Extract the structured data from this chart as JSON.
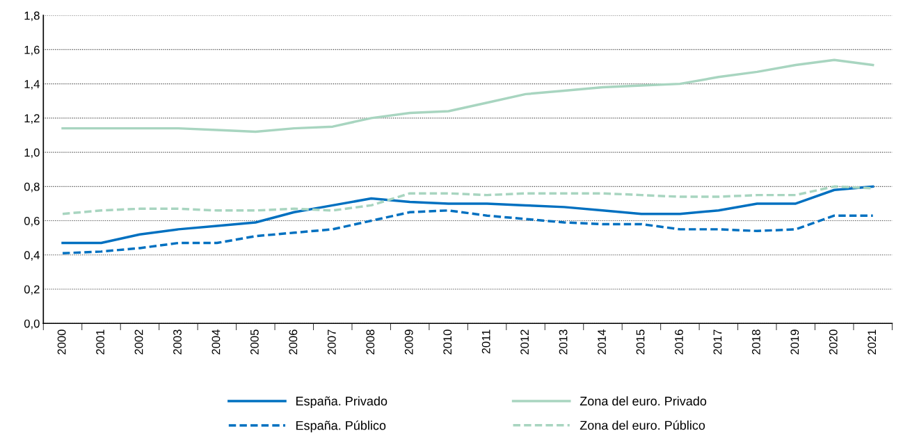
{
  "chart_data": {
    "type": "line",
    "categories": [
      "2000",
      "2001",
      "2002",
      "2003",
      "2004",
      "2005",
      "2006",
      "2007",
      "2008",
      "2009",
      "2010",
      "2011",
      "2012",
      "2013",
      "2014",
      "2015",
      "2016",
      "2017",
      "2018",
      "2019",
      "2020",
      "2021"
    ],
    "series": [
      {
        "name": "España. Privado",
        "color": "#0070c0",
        "line_style": "solid",
        "values": [
          0.47,
          0.47,
          0.52,
          0.55,
          0.57,
          0.59,
          0.65,
          0.69,
          0.73,
          0.71,
          0.7,
          0.7,
          0.69,
          0.68,
          0.66,
          0.64,
          0.64,
          0.66,
          0.7,
          0.7,
          0.78,
          0.8
        ]
      },
      {
        "name": "España. Público",
        "color": "#0070c0",
        "line_style": "dashed",
        "values": [
          0.41,
          0.42,
          0.44,
          0.47,
          0.47,
          0.51,
          0.53,
          0.55,
          0.6,
          0.65,
          0.66,
          0.63,
          0.61,
          0.59,
          0.58,
          0.58,
          0.55,
          0.55,
          0.54,
          0.55,
          0.63,
          0.63
        ]
      },
      {
        "name": "Zona del euro. Privado",
        "color": "#a8d5c0",
        "line_style": "solid",
        "values": [
          1.14,
          1.14,
          1.14,
          1.14,
          1.13,
          1.12,
          1.14,
          1.15,
          1.2,
          1.23,
          1.24,
          1.29,
          1.34,
          1.36,
          1.38,
          1.39,
          1.4,
          1.44,
          1.47,
          1.51,
          1.54,
          1.51
        ]
      },
      {
        "name": "Zona del euro. Público",
        "color": "#a8d5c0",
        "line_style": "dashed",
        "values": [
          0.64,
          0.66,
          0.67,
          0.67,
          0.66,
          0.66,
          0.67,
          0.66,
          0.69,
          0.76,
          0.76,
          0.75,
          0.76,
          0.76,
          0.76,
          0.75,
          0.74,
          0.74,
          0.75,
          0.75,
          0.8,
          0.79
        ]
      }
    ],
    "ylim": [
      0,
      1.8
    ],
    "yticks": [
      {
        "value": 0,
        "label": "0,0"
      },
      {
        "value": 0.2,
        "label": "0,2"
      },
      {
        "value": 0.4,
        "label": "0,4"
      },
      {
        "value": 0.6,
        "label": "0,6"
      },
      {
        "value": 0.8,
        "label": "0,8"
      },
      {
        "value": 1.0,
        "label": "1,0"
      },
      {
        "value": 1.2,
        "label": "1,2"
      },
      {
        "value": 1.4,
        "label": "1,4"
      },
      {
        "value": 1.6,
        "label": "1,6"
      },
      {
        "value": 1.8,
        "label": "1,8"
      }
    ],
    "grid": "y",
    "legend": "bottom",
    "marker": "none"
  }
}
